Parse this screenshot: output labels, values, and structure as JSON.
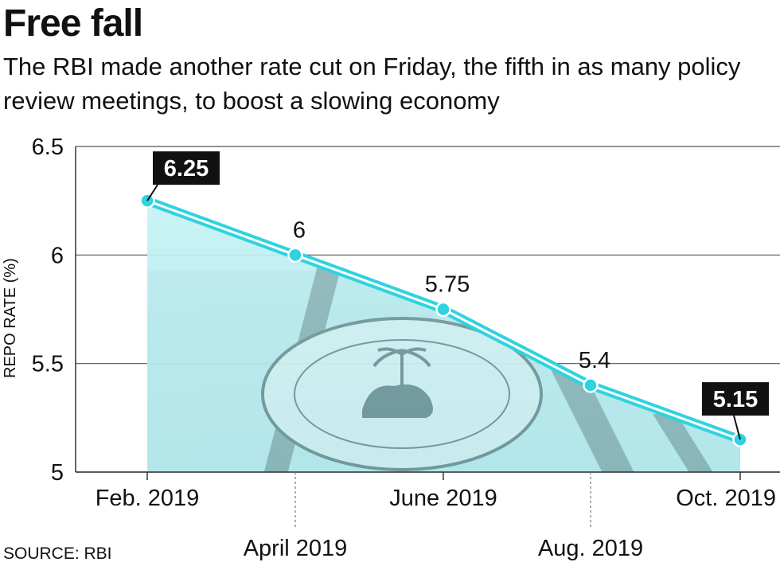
{
  "header": {
    "title": "Free fall",
    "subtitle": "The RBI made another rate cut on Friday, the fifth in as many policy review meetings, to boost a slowing economy"
  },
  "footer": {
    "source": "SOURCE: RBI"
  },
  "colors": {
    "line": "#2fd3e0",
    "fill": "#bff0f2",
    "label_box": "#111111",
    "grid": "#555555"
  },
  "chart_data": {
    "type": "line",
    "title": "Free fall",
    "ylabel": "REPO RATE (%)",
    "xlabel": "",
    "ylim": [
      5,
      6.5
    ],
    "yticks": [
      "5",
      "5.5",
      "6",
      "6.5"
    ],
    "grid": true,
    "categories": [
      "Feb. 2019",
      "April 2019",
      "June 2019",
      "Aug. 2019",
      "Oct. 2019"
    ],
    "values": [
      6.25,
      6,
      5.75,
      5.4,
      5.15
    ],
    "data_labels": [
      "6.25",
      "6",
      "5.75",
      "5.4",
      "5.15"
    ],
    "highlighted_labels": [
      "6.25",
      "5.15"
    ],
    "background_image": "reserve-bank-of-india-seal"
  }
}
